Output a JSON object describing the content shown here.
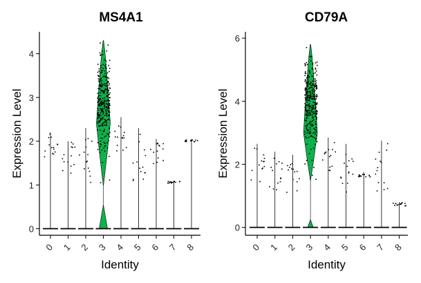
{
  "chart_data": [
    {
      "type": "violin",
      "title": "MS4A1",
      "xlabel": "Identity",
      "ylabel": "Expression Level",
      "categories": [
        "0",
        "1",
        "2",
        "3",
        "4",
        "5",
        "6",
        "7",
        "8"
      ],
      "yticks": [
        0,
        1,
        2,
        3,
        4
      ],
      "ylim": [
        -0.15,
        4.5
      ],
      "highlight_category": "3",
      "fill_color": "#0db24c",
      "point_color": "#000000",
      "violins": [
        {
          "category": "0",
          "max": 2.2,
          "mass_y": 0,
          "spread_low": 1.5,
          "spread_high": 2.2
        },
        {
          "category": "1",
          "max": 2.0,
          "mass_y": 0,
          "spread_low": 1.2,
          "spread_high": 2.0
        },
        {
          "category": "2",
          "max": 2.3,
          "mass_y": 0,
          "spread_low": 1.0,
          "spread_high": 2.2
        },
        {
          "category": "3",
          "max": 4.3,
          "mass_y": 2.4,
          "spread_low": 1.0,
          "spread_high": 4.3
        },
        {
          "category": "4",
          "max": 2.55,
          "mass_y": 0,
          "spread_low": 1.7,
          "spread_high": 2.5
        },
        {
          "category": "5",
          "max": 2.3,
          "mass_y": 0,
          "spread_low": 1.1,
          "spread_high": 2.2
        },
        {
          "category": "6",
          "max": 2.05,
          "mass_y": 0,
          "spread_low": 1.5,
          "spread_high": 2.0
        },
        {
          "category": "7",
          "max": 1.1,
          "mass_y": 0,
          "spread_low": 1.05,
          "spread_high": 1.1
        },
        {
          "category": "8",
          "max": 2.05,
          "mass_y": 0,
          "spread_low": 2.0,
          "spread_high": 2.05
        }
      ]
    },
    {
      "type": "violin",
      "title": "CD79A",
      "xlabel": "Identity",
      "ylabel": "Expression Level",
      "categories": [
        "0",
        "1",
        "2",
        "3",
        "4",
        "5",
        "6",
        "7",
        "8"
      ],
      "yticks": [
        0,
        2,
        4,
        6
      ],
      "ylim": [
        -0.25,
        6.2
      ],
      "highlight_category": "3",
      "fill_color": "#0db24c",
      "point_color": "#000000",
      "violins": [
        {
          "category": "0",
          "max": 2.65,
          "mass_y": 0,
          "spread_low": 1.2,
          "spread_high": 2.6
        },
        {
          "category": "1",
          "max": 2.4,
          "mass_y": 0,
          "spread_low": 1.0,
          "spread_high": 2.3
        },
        {
          "category": "2",
          "max": 2.3,
          "mass_y": 0,
          "spread_low": 1.1,
          "spread_high": 2.2
        },
        {
          "category": "3",
          "max": 5.8,
          "mass_y": 3.0,
          "spread_low": 1.5,
          "spread_high": 5.8
        },
        {
          "category": "4",
          "max": 2.85,
          "mass_y": 0,
          "spread_low": 1.8,
          "spread_high": 2.8
        },
        {
          "category": "5",
          "max": 2.65,
          "mass_y": 0,
          "spread_low": 1.1,
          "spread_high": 2.6
        },
        {
          "category": "6",
          "max": 1.75,
          "mass_y": 0,
          "spread_low": 1.6,
          "spread_high": 1.7
        },
        {
          "category": "7",
          "max": 2.75,
          "mass_y": 0,
          "spread_low": 1.0,
          "spread_high": 2.7
        },
        {
          "category": "8",
          "max": 0.8,
          "mass_y": 0,
          "spread_low": 0.7,
          "spread_high": 0.8
        }
      ]
    }
  ]
}
